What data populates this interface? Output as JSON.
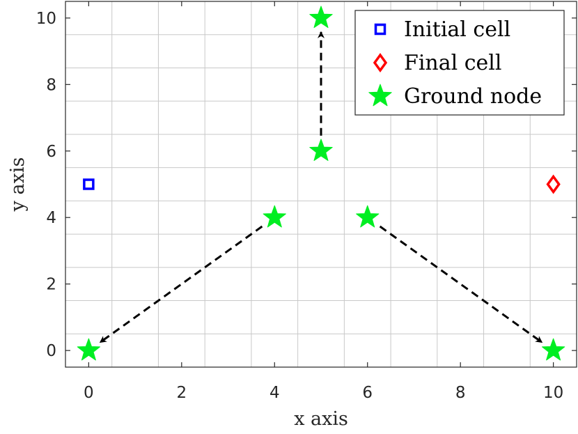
{
  "chart_data": {
    "type": "scatter",
    "xlabel": "x axis",
    "ylabel": "y axis",
    "xlim": [
      -0.5,
      10.5
    ],
    "ylim": [
      -0.5,
      10.5
    ],
    "xticks": [
      "0",
      "2",
      "4",
      "6",
      "8",
      "10"
    ],
    "xtick_values": [
      0,
      2,
      4,
      6,
      8,
      10
    ],
    "yticks": [
      "0",
      "2",
      "4",
      "6",
      "8",
      "10"
    ],
    "ytick_values": [
      0,
      2,
      4,
      6,
      8,
      10
    ],
    "grid_x": [
      -0.5,
      0.5,
      1.5,
      2.5,
      3.5,
      4.5,
      5.5,
      6.5,
      7.5,
      8.5,
      9.5,
      10.5
    ],
    "grid_y": [
      -0.5,
      0.5,
      1.5,
      2.5,
      3.5,
      4.5,
      5.5,
      6.5,
      7.5,
      8.5,
      9.5,
      10.5
    ],
    "grid": true,
    "legend_position": "top-right",
    "series": [
      {
        "name": "Initial cell",
        "marker": "square",
        "color": "#0000ff",
        "points": [
          [
            0,
            5
          ]
        ]
      },
      {
        "name": "Final cell",
        "marker": "diamond",
        "color": "#ff0000",
        "points": [
          [
            10,
            5
          ]
        ]
      },
      {
        "name": "Ground node",
        "marker": "star",
        "color": "#00ee22",
        "points": [
          [
            0,
            0
          ],
          [
            4,
            4
          ],
          [
            5,
            6
          ],
          [
            5,
            10
          ],
          [
            6,
            4
          ],
          [
            10,
            0
          ]
        ]
      }
    ],
    "arrows": [
      {
        "from": [
          4,
          4
        ],
        "to": [
          0,
          0
        ]
      },
      {
        "from": [
          5,
          6
        ],
        "to": [
          5,
          10
        ]
      },
      {
        "from": [
          6,
          4
        ],
        "to": [
          10,
          0
        ]
      }
    ]
  }
}
